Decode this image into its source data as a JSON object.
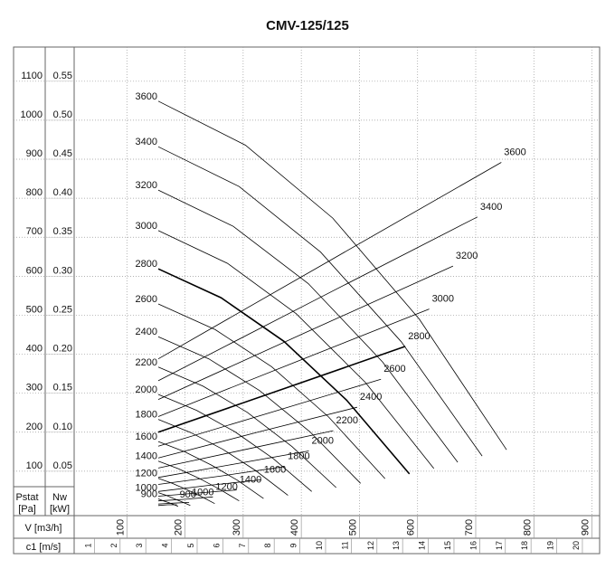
{
  "chart_data": {
    "type": "line",
    "title": "CMV-125/125",
    "x_label": "V [m3/h]",
    "x2_label": "c1 [m/s]",
    "y_label": [
      "Pstat",
      "[Pa]"
    ],
    "y2_label": [
      "Nw",
      "[kW]"
    ],
    "xlim": [
      0,
      910
    ],
    "xticks": [
      100,
      200,
      300,
      400,
      500,
      600,
      700,
      800,
      900
    ],
    "x2lim": [
      0,
      20.6
    ],
    "x2ticks": [
      1,
      2,
      3,
      4,
      5,
      6,
      7,
      8,
      9,
      10,
      11,
      12,
      13,
      14,
      15,
      16,
      17,
      18,
      19,
      20
    ],
    "ylim": [
      0,
      1190
    ],
    "yticks": [
      100,
      200,
      300,
      400,
      500,
      600,
      700,
      800,
      900,
      1000,
      1100
    ],
    "y2lim": [
      0,
      0.595
    ],
    "y2ticks": [
      0.05,
      {
        "value": 0.1,
        "label": "0.10"
      },
      0.15,
      {
        "value": 0.2,
        "label": "0.20"
      },
      0.25,
      {
        "value": 0.3,
        "label": "0.30"
      },
      0.35,
      {
        "value": 0.4,
        "label": "0.40"
      },
      0.45,
      {
        "value": 0.5,
        "label": "0.50"
      },
      0.55
    ],
    "grid": true,
    "color": "#000",
    "line_width": 0.8,
    "series": [
      {
        "name": "3600",
        "axis": "y",
        "x": [
          154,
          304,
          454,
          603,
          753
        ],
        "values": [
          1049,
          936,
          749,
          490,
          155
        ]
      },
      {
        "name": "3400",
        "axis": "y",
        "x": [
          154,
          293,
          433,
          572,
          711
        ],
        "values": [
          932,
          830,
          662,
          432,
          139
        ]
      },
      {
        "name": "3200",
        "axis": "y",
        "x": [
          154,
          283,
          412,
          540,
          669
        ],
        "values": [
          821,
          728,
          581,
          380,
          123
        ]
      },
      {
        "name": "3000",
        "axis": "y",
        "x": [
          154,
          273,
          391,
          510,
          628
        ],
        "values": [
          717,
          633,
          504,
          328,
          107
        ]
      },
      {
        "name": "2800",
        "axis": "y",
        "x": [
          154,
          262,
          370,
          478,
          586
        ],
        "values": [
          619,
          545,
          433,
          282,
          93
        ],
        "line_width": 1.6
      },
      {
        "name": "2600",
        "axis": "y",
        "x": [
          154,
          252,
          349,
          447,
          544
        ],
        "values": [
          529,
          463,
          368,
          239,
          81
        ]
      },
      {
        "name": "2400",
        "axis": "y",
        "x": [
          154,
          241,
          328,
          415,
          502
        ],
        "values": [
          445,
          388,
          307,
          201,
          69
        ]
      },
      {
        "name": "2200",
        "axis": "y",
        "x": [
          154,
          231,
          307,
          384,
          460
        ],
        "values": [
          367,
          318,
          251,
          163,
          58
        ]
      },
      {
        "name": "2000",
        "axis": "y",
        "x": [
          154,
          220,
          286,
          352,
          418
        ],
        "values": [
          297,
          256,
          201,
          132,
          48
        ]
      },
      {
        "name": "1800",
        "axis": "y",
        "x": [
          154,
          210,
          265,
          321,
          377
        ],
        "values": [
          233,
          199,
          156,
          102,
          38
        ]
      },
      {
        "name": "1600",
        "axis": "y",
        "x": [
          154,
          199,
          245,
          290,
          335
        ],
        "values": [
          176,
          150,
          116,
          77,
          30
        ]
      },
      {
        "name": "1400",
        "axis": "y",
        "x": [
          154,
          189,
          224,
          258,
          293
        ],
        "values": [
          126,
          106,
          82,
          55,
          24
        ]
      },
      {
        "name": "1200",
        "axis": "y",
        "x": [
          154,
          178,
          203,
          227,
          251
        ],
        "values": [
          82,
          69,
          53,
          36,
          17
        ]
      },
      {
        "name": "1000",
        "axis": "y",
        "x": [
          154,
          168,
          182,
          195,
          209
        ],
        "values": [
          45,
          38,
          29,
          21,
          12
        ]
      },
      {
        "name": "900",
        "axis": "y",
        "x": [
          154,
          163,
          171,
          180,
          188
        ],
        "values": [
          29,
          24,
          20,
          15,
          10
        ]
      },
      {
        "name": "3600",
        "axis": "y2",
        "x": [
          154,
          449,
          744
        ],
        "values": [
          0.194,
          0.32,
          0.446
        ]
      },
      {
        "name": "3400",
        "axis": "y2",
        "x": [
          154,
          428,
          703
        ],
        "values": [
          0.166,
          0.271,
          0.376
        ]
      },
      {
        "name": "3200",
        "axis": "y2",
        "x": [
          154,
          408,
          661
        ],
        "values": [
          0.142,
          0.228,
          0.313
        ]
      },
      {
        "name": "3000",
        "axis": "y2",
        "x": [
          154,
          387,
          620
        ],
        "values": [
          0.12,
          0.189,
          0.258
        ]
      },
      {
        "name": "2800",
        "axis": "y2",
        "x": [
          154,
          367,
          579
        ],
        "values": [
          0.1,
          0.155,
          0.21
        ],
        "line_width": 1.6
      },
      {
        "name": "2600",
        "axis": "y2",
        "x": [
          154,
          346,
          537
        ],
        "values": [
          0.082,
          0.125,
          0.168
        ]
      },
      {
        "name": "2400",
        "axis": "y2",
        "x": [
          154,
          325,
          496
        ],
        "values": [
          0.067,
          0.1,
          0.132
        ]
      },
      {
        "name": "2200",
        "axis": "y2",
        "x": [
          154,
          305,
          455
        ],
        "values": [
          0.054,
          0.078,
          0.102
        ]
      },
      {
        "name": "2000",
        "axis": "y2",
        "x": [
          154,
          284,
          413
        ],
        "values": [
          0.042,
          0.059,
          0.076
        ]
      },
      {
        "name": "1800",
        "axis": "y2",
        "x": [
          154,
          263,
          372
        ],
        "values": [
          0.033,
          0.044,
          0.056
        ]
      },
      {
        "name": "1600",
        "axis": "y2",
        "x": [
          154,
          243,
          331
        ],
        "values": [
          0.024,
          0.032,
          0.039
        ]
      },
      {
        "name": "1400",
        "axis": "y2",
        "x": [
          154,
          222,
          289
        ],
        "values": [
          0.018,
          0.022,
          0.026
        ]
      },
      {
        "name": "1200",
        "axis": "y2",
        "x": [
          154,
          201,
          248
        ],
        "values": [
          0.012,
          0.014,
          0.017
        ]
      },
      {
        "name": "1000",
        "axis": "y2",
        "x": [
          154,
          181,
          207
        ],
        "values": [
          0.008,
          0.009,
          0.01
        ]
      },
      {
        "name": "900",
        "axis": "y2",
        "x": [
          154,
          170,
          186
        ],
        "values": [
          0.006,
          0.007,
          0.007
        ]
      }
    ]
  }
}
